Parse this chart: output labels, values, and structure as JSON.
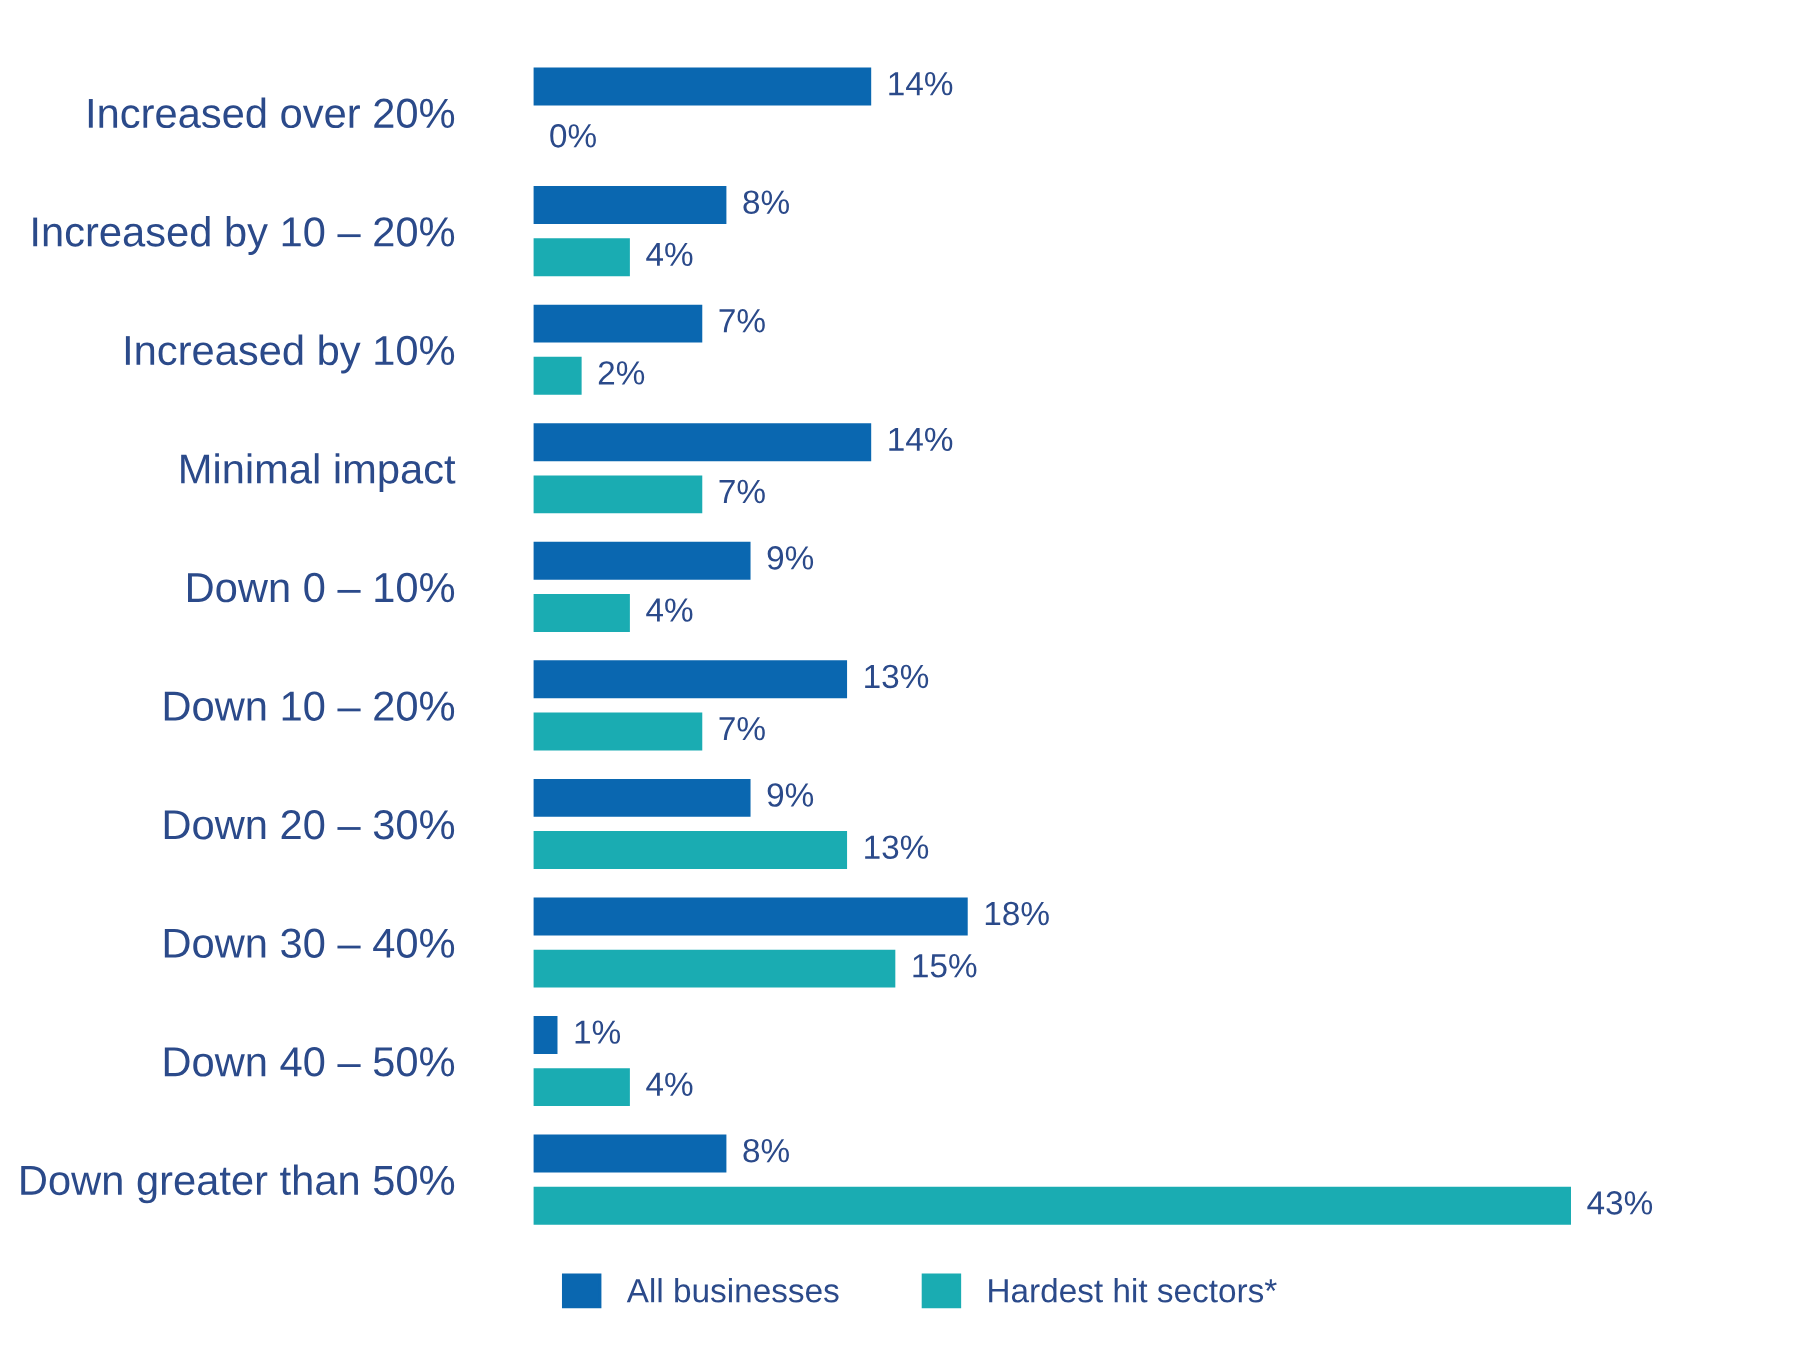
{
  "chart_data": {
    "type": "bar",
    "orientation": "horizontal",
    "categories": [
      "Increased over 20%",
      "Increased by 10 – 20%",
      "Increased by 10%",
      "Minimal impact",
      "Down 0 – 10%",
      "Down 10 – 20%",
      "Down 20 – 30%",
      "Down 30 – 40%",
      "Down 40 – 50%",
      "Down greater than 50%"
    ],
    "series": [
      {
        "name": "All businesses",
        "color": "#0a67b0",
        "values": [
          14,
          8,
          7,
          14,
          9,
          13,
          9,
          18,
          1,
          8
        ],
        "value_labels": [
          "14%",
          "8%",
          "7%",
          "14%",
          "9%",
          "13%",
          "9%",
          "18%",
          "1%",
          "8%"
        ]
      },
      {
        "name": "Hardest hit sectors*",
        "color": "#1aacb2",
        "values": [
          0,
          4,
          2,
          7,
          4,
          7,
          13,
          15,
          4,
          43
        ],
        "value_labels": [
          "0%",
          "4%",
          "2%",
          "7%",
          "4%",
          "7%",
          "13%",
          "15%",
          "4%",
          "43%"
        ]
      }
    ],
    "tick_labels": "y",
    "legend": "bottom left",
    "grid": false
  }
}
